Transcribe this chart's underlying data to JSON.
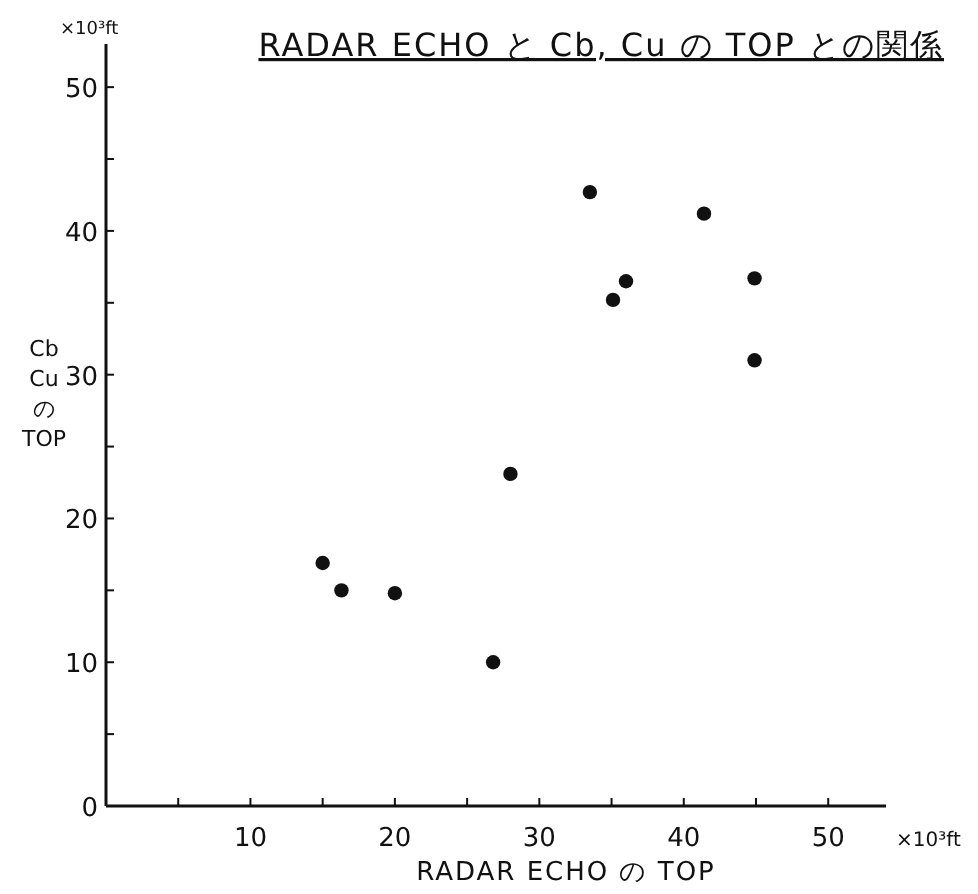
{
  "chart_data": {
    "type": "scatter",
    "title": "RADAR ECHO と Cb, Cu の TOP との関係",
    "xlabel": "RADAR ECHO の TOP",
    "ylabel": "Cb Cu の TOP",
    "annotations": [
      "×10³ft",
      "×10³ft"
    ],
    "x": [
      15.0,
      16.3,
      20.0,
      26.8,
      28.0,
      33.5,
      35.1,
      36.0,
      41.4,
      44.9,
      44.9
    ],
    "series": [
      {
        "color": "#111111",
        "values": [
          16.9,
          15.0,
          14.8,
          10.0,
          23.1,
          42.7,
          35.2,
          36.5,
          41.2,
          36.7,
          31.0
        ]
      }
    ],
    "xlim": [
      0,
      54
    ],
    "ylim": [
      0,
      53
    ],
    "xticks": [
      {
        "value": 5,
        "label": null
      },
      10,
      {
        "value": 15,
        "label": null
      },
      20,
      {
        "value": 25,
        "label": null
      },
      30,
      {
        "value": 35,
        "label": null
      },
      40,
      {
        "value": 45,
        "label": null
      },
      50
    ],
    "yticks": [
      0,
      {
        "value": 5,
        "label": null
      },
      10,
      {
        "value": 15,
        "label": null
      },
      20,
      {
        "value": 25,
        "label": null
      },
      30,
      {
        "value": 35,
        "label": null
      },
      40,
      {
        "value": 45,
        "label": null
      },
      50
    ],
    "marker": "circle",
    "grid": false
  }
}
